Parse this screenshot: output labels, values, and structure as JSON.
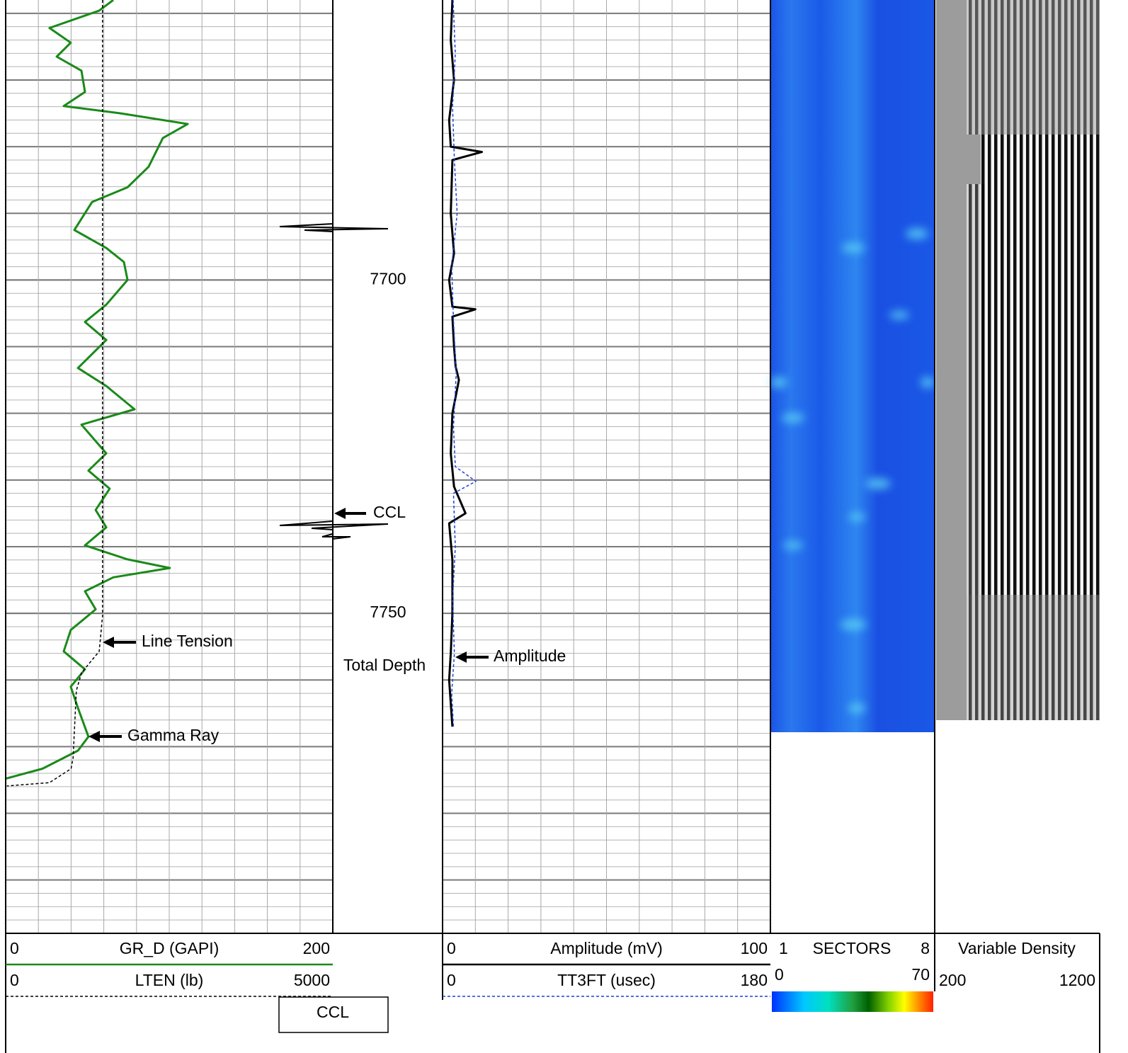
{
  "chart_data": {
    "type": "well-log",
    "ylim": [
      7658,
      7798
    ],
    "yticks": [
      7700,
      7750
    ],
    "grid_depths": [
      7660,
      7662,
      7664,
      7666,
      7668,
      7670,
      7672,
      7674,
      7676,
      7678,
      7680,
      7682,
      7684,
      7686,
      7688,
      7690,
      7692,
      7694,
      7696,
      7698,
      7700,
      7702,
      7704,
      7706,
      7708,
      7710,
      7712,
      7714,
      7716,
      7718,
      7720,
      7722,
      7724,
      7726,
      7728,
      7730,
      7732,
      7734,
      7736,
      7738,
      7740,
      7742,
      7744,
      7746,
      7748,
      7750,
      7752,
      7754,
      7756,
      7758,
      7760,
      7762,
      7764,
      7766,
      7768,
      7770,
      7772,
      7774,
      7776,
      7778,
      7780,
      7782,
      7784,
      7786,
      7788,
      7790,
      7792,
      7794,
      7796,
      7798
    ],
    "tracks": [
      {
        "xticks": [
          0,
          20,
          40,
          60,
          80,
          100,
          120,
          140,
          160,
          180,
          200
        ],
        "series": [
          {
            "name": "GR_D (GAPI)",
            "color": "#1a8a1a",
            "dash": false,
            "xlim": [
              0,
              200
            ],
            "x": [
              7658.0,
              7659.6,
              7662.2,
              7664.4,
              7666.5,
              7668.6,
              7671.8,
              7673.9,
              7675.0,
              7676.6,
              7678.7,
              7683.0,
              7686.1,
              7688.3,
              7692.5,
              7695.2,
              7697.3,
              7700.0,
              7703.7,
              7706.3,
              7709.0,
              7713.2,
              7715.9,
              7719.4,
              7721.7,
              7726.0,
              7728.6,
              7731.3,
              7734.5,
              7737.1,
              7739.8,
              7741.9,
              7743.2,
              7744.6,
              7746.7,
              7749.4,
              7752.5,
              7755.7,
              7758.4,
              7761.0,
              7764.2,
              7768.5,
              7770.6,
              7773.3,
              7774.8
            ],
            "values": [
              65.8,
              57.1,
              26.8,
              39.8,
              31.2,
              46.3,
              48.5,
              35.5,
              70.1,
              111.3,
              96.1,
              87.4,
              74.5,
              52.8,
              42.0,
              61.5,
              72.3,
              74.5,
              61.5,
              48.5,
              61.5,
              44.2,
              61.5,
              78.8,
              46.3,
              61.5,
              50.6,
              63.6,
              55.0,
              61.5,
              48.5,
              74.5,
              100.4,
              65.8,
              48.5,
              55.0,
              39.8,
              35.5,
              48.5,
              39.8,
              44.2,
              50.6,
              44.2,
              22.5,
              0
            ]
          },
          {
            "name": "LTEN (lb)",
            "color": "#000000",
            "dash": true,
            "xlim": [
              0,
              5000
            ],
            "x": [
              7658.0,
              7700.0,
              7750.4,
              7755.7,
              7758.9,
              7761.6,
              7771.7,
              7773.3,
              7775.4,
              7775.9
            ],
            "values": [
              1480,
              1480,
              1480,
              1430,
              1160,
              1080,
              1030,
              1000,
              670,
              20
            ]
          }
        ]
      },
      {
        "xticks": [
          0,
          10,
          20,
          30,
          40,
          50,
          60,
          70,
          80,
          90,
          100
        ],
        "series": [
          {
            "name": "Amplitude (mV)",
            "color": "#000000",
            "dash": false,
            "xlim": [
              0,
              100
            ],
            "x": [
              7658,
              7664,
              7670,
              7676,
              7680,
              7680.8,
              7682,
              7690,
              7696,
              7700,
              7704,
              7704.4,
              7705.5,
              7710,
              7713,
              7715,
              7720,
              7726,
              7731,
              7735,
              7736.5,
              7742,
              7750,
              7756,
              7760,
              7767
            ],
            "values": [
              3,
              2.5,
              3.5,
              2,
              2.5,
              12,
              3,
              2.5,
              3.5,
              2,
              3,
              10,
              3,
              3.5,
              4,
              5,
              3,
              2.5,
              3.5,
              7,
              2,
              3,
              3,
              2.5,
              2,
              3
            ]
          },
          {
            "name": "TT3FT (usec)",
            "color": "#1f3fd8",
            "dash": true,
            "xlim": [
              0,
              180
            ],
            "x": [
              7658,
              7666,
              7674,
              7682,
              7690,
              7698,
              7706,
              7714,
              7722,
              7728,
              7730.2,
              7732,
              7740,
              7748,
              7756,
              7762,
              7767
            ],
            "values": [
              5.8,
              7,
              5.5,
              6.5,
              8,
              5,
              6,
              7.5,
              6,
              7,
              18.3,
              6,
              7,
              5.5,
              6.5,
              5,
              6
            ]
          }
        ]
      }
    ],
    "sectors": {
      "name": "SECTORS",
      "xlim": [
        1,
        8
      ],
      "color_lim": [
        0,
        70
      ]
    },
    "vdl": {
      "name": "Variable Density",
      "xlim": [
        200,
        1200
      ]
    },
    "ccl_label": "CCL",
    "annotations": [
      "Line Tension",
      "Gamma Ray",
      "CCL",
      "Amplitude",
      "Total Depth"
    ]
  }
}
